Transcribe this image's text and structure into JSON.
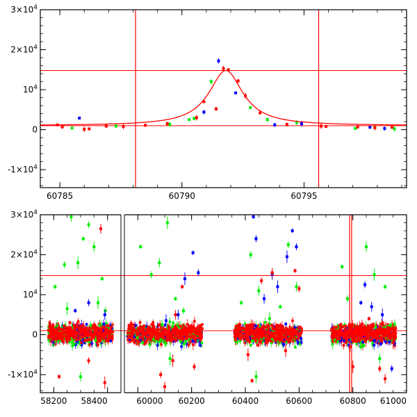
{
  "chart_data": [
    {
      "name": "top-panel",
      "type": "scatter",
      "title": "",
      "xlabel": "",
      "ylabel": "",
      "xlim": [
        60784.2,
        60799.2
      ],
      "ylim": [
        -14500,
        30000
      ],
      "yticks": [
        {
          "value": 30000,
          "mant": "3×10",
          "exp": "4"
        },
        {
          "value": 20000,
          "mant": "2×10",
          "exp": "4"
        },
        {
          "value": 10000,
          "mant": "10",
          "exp": "4"
        },
        {
          "value": 0,
          "mant": "0",
          "exp": ""
        },
        {
          "value": -10000,
          "mant": "-1×10",
          "exp": "4"
        }
      ],
      "xticks": [
        {
          "value": 60785,
          "label": "60785"
        },
        {
          "value": 60790,
          "label": "60790"
        },
        {
          "value": 60795,
          "label": "60795"
        }
      ],
      "hlines": [
        14800,
        1000
      ],
      "vlines": [
        60788.1,
        60795.6
      ],
      "series": [
        {
          "name": "green",
          "color": "#00ee00",
          "points": [
            [
              60785.5,
              400
            ],
            [
              60787.3,
              900
            ],
            [
              60789.5,
              1300
            ],
            [
              60790.3,
              2500
            ],
            [
              60790.5,
              2800
            ],
            [
              60791.2,
              12000
            ],
            [
              60792.8,
              5500
            ],
            [
              60793.5,
              2500
            ],
            [
              60794.7,
              1800
            ],
            [
              60797.1,
              300
            ],
            [
              60797.9,
              600
            ],
            [
              60798.7,
              200
            ]
          ]
        },
        {
          "name": "blue",
          "color": "#0000ff",
          "points": [
            [
              60785.8,
              2900
            ],
            [
              60790.9,
              4400
            ],
            [
              60791.5,
              17200
            ],
            [
              60792.2,
              9200
            ],
            [
              60793.8,
              1200
            ],
            [
              60794.9,
              1500
            ],
            [
              60797.7,
              600
            ],
            [
              60798.3,
              300
            ]
          ]
        },
        {
          "name": "red",
          "color": "#ff0000",
          "points": [
            [
              60784.9,
              1200
            ],
            [
              60785.1,
              700
            ],
            [
              60786.0,
              100
            ],
            [
              60786.2,
              200
            ],
            [
              60786.9,
              900
            ],
            [
              60787.6,
              800
            ],
            [
              60788.5,
              1100
            ],
            [
              60789.4,
              1500
            ],
            [
              60790.6,
              3000
            ],
            [
              60790.9,
              7000
            ],
            [
              60791.4,
              5200
            ],
            [
              60791.7,
              15300
            ],
            [
              60791.9,
              15000
            ],
            [
              60792.3,
              12200
            ],
            [
              60792.6,
              8500
            ],
            [
              60793.2,
              4200
            ],
            [
              60794.3,
              1300
            ],
            [
              60795.7,
              900
            ],
            [
              60795.9,
              800
            ],
            [
              60797.2,
              700
            ],
            [
              60797.9,
              500
            ],
            [
              60798.6,
              600
            ]
          ]
        }
      ],
      "model_curve": {
        "color": "#ff0000",
        "baseline": 1000,
        "peak": 14800,
        "t0": 60791.8,
        "width": 0.85
      }
    },
    {
      "name": "bottom-panel",
      "type": "scatter",
      "title": "",
      "xlabel": "",
      "ylabel": "",
      "xlim": [
        58150,
        61000
      ],
      "ylim": [
        -14500,
        30000
      ],
      "yticks": [
        {
          "value": 30000,
          "mant": "3×10",
          "exp": "4"
        },
        {
          "value": 20000,
          "mant": "2×10",
          "exp": "4"
        },
        {
          "value": 10000,
          "mant": "10",
          "exp": "4"
        },
        {
          "value": 0,
          "mant": "0",
          "exp": ""
        },
        {
          "value": -10000,
          "mant": "-1×10",
          "exp": "4"
        }
      ],
      "xticks": [
        {
          "value": 58200,
          "label": "58200"
        },
        {
          "value": 58400,
          "label": "58400"
        },
        {
          "value": 60000,
          "label": "60000"
        },
        {
          "value": 60200,
          "label": "60200"
        },
        {
          "value": 60400,
          "label": "60400"
        },
        {
          "value": 60600,
          "label": "60600"
        },
        {
          "value": 60800,
          "label": "60800"
        },
        {
          "value": 61000,
          "label": "61000"
        }
      ],
      "axis_break": [
        58450,
        59950
      ],
      "hlines": [
        14800,
        1000
      ],
      "vlines": [
        60788.1,
        60795.6
      ],
      "seasons": [
        [
          58180,
          58420
        ],
        [
          59960,
          60240
        ],
        [
          60360,
          60610
        ],
        [
          60720,
          60960
        ]
      ],
      "series": [
        {
          "name": "green",
          "color": "#00ee00",
          "points": [
            [
              58205,
              12000
            ],
            [
              58240,
              17500
            ],
            [
              58265,
              29500
            ],
            [
              58290,
              18000
            ],
            [
              58310,
              24000
            ],
            [
              58330,
              27500
            ],
            [
              58350,
              22000
            ],
            [
              58365,
              8000
            ],
            [
              58380,
              14000
            ],
            [
              58392,
              6000
            ],
            [
              58300,
              -10500
            ],
            [
              58250,
              6500
            ],
            [
              60010,
              22000
            ],
            [
              60050,
              15000
            ],
            [
              60080,
              18000
            ],
            [
              60110,
              28000
            ],
            [
              60140,
              9000
            ],
            [
              60170,
              6000
            ],
            [
              60090,
              2500
            ],
            [
              60120,
              -6000
            ],
            [
              60385,
              8000
            ],
            [
              60420,
              20000
            ],
            [
              60450,
              11000
            ],
            [
              60490,
              4000
            ],
            [
              60530,
              7000
            ],
            [
              60560,
              22500
            ],
            [
              60590,
              12000
            ],
            [
              60440,
              -10500
            ],
            [
              60760,
              17000
            ],
            [
              60780,
              9000
            ],
            [
              60850,
              22000
            ],
            [
              60880,
              15000
            ],
            [
              60920,
              12000
            ],
            [
              60830,
              -3000
            ],
            [
              60900,
              -6000
            ]
          ]
        },
        {
          "name": "blue",
          "color": "#0000ff",
          "points": [
            [
              58280,
              6000
            ],
            [
              58330,
              8000
            ],
            [
              58390,
              5000
            ],
            [
              60175,
              14000
            ],
            [
              60205,
              20500
            ],
            [
              60225,
              15500
            ],
            [
              60150,
              5000
            ],
            [
              60105,
              3500
            ],
            [
              60430,
              29500
            ],
            [
              60440,
              24000
            ],
            [
              60500,
              15000
            ],
            [
              60555,
              19500
            ],
            [
              60575,
              26000
            ],
            [
              60590,
              22000
            ],
            [
              60470,
              9000
            ],
            [
              60520,
              12000
            ],
            [
              60830,
              8000
            ],
            [
              60845,
              12500
            ],
            [
              60870,
              7000
            ],
            [
              60910,
              5000
            ],
            [
              60880,
              -1500
            ],
            [
              60945,
              -8500
            ]
          ]
        },
        {
          "name": "red",
          "color": "#ff0000",
          "points": [
            [
              58220,
              -10500
            ],
            [
              58330,
              -6500
            ],
            [
              58375,
              26500
            ],
            [
              58390,
              -12000
            ],
            [
              58260,
              3000
            ],
            [
              60085,
              -10000
            ],
            [
              60100,
              -13000
            ],
            [
              60130,
              -6500
            ],
            [
              60165,
              12000
            ],
            [
              60210,
              -8000
            ],
            [
              60140,
              5000
            ],
            [
              60410,
              -5000
            ],
            [
              60425,
              -11500
            ],
            [
              60460,
              13500
            ],
            [
              60500,
              15500
            ],
            [
              60550,
              -4000
            ],
            [
              60585,
              16000
            ],
            [
              60600,
              11500
            ],
            [
              60790,
              -3000
            ],
            [
              60800,
              -8000
            ],
            [
              60860,
              4000
            ],
            [
              60900,
              -8500
            ],
            [
              60920,
              -11000
            ],
            [
              60950,
              -2000
            ]
          ]
        }
      ],
      "band": {
        "center": 0,
        "spread": 3500
      }
    }
  ]
}
